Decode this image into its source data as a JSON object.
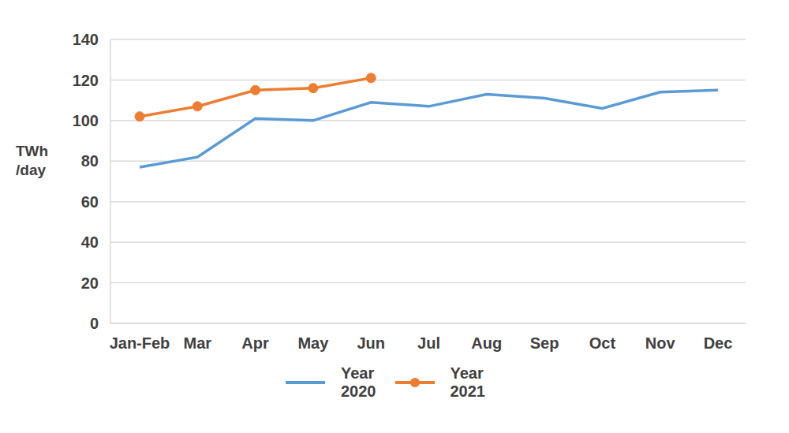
{
  "chart_data": {
    "type": "line",
    "y_label": "TWh /day",
    "categories": [
      "Jan-Feb",
      "Mar",
      "Apr",
      "May",
      "Jun",
      "Jul",
      "Aug",
      "Sep",
      "Oct",
      "Nov",
      "Dec"
    ],
    "series": [
      {
        "name": "Year 2020",
        "color": "#5b9bd5",
        "marker": "none",
        "line_style": "solid",
        "values": [
          77,
          82,
          101,
          100,
          109,
          107,
          113,
          111,
          106,
          114,
          115
        ]
      },
      {
        "name": "Year 2021",
        "color": "#ed7d31",
        "marker": "circle",
        "line_style": "solid",
        "values": [
          102,
          107,
          115,
          116,
          121,
          null,
          null,
          null,
          null,
          null,
          null
        ]
      }
    ],
    "ylim": [
      0,
      140
    ],
    "yticks": [
      0,
      20,
      40,
      60,
      80,
      100,
      120,
      140
    ],
    "grid": true,
    "legend": "bottom"
  }
}
